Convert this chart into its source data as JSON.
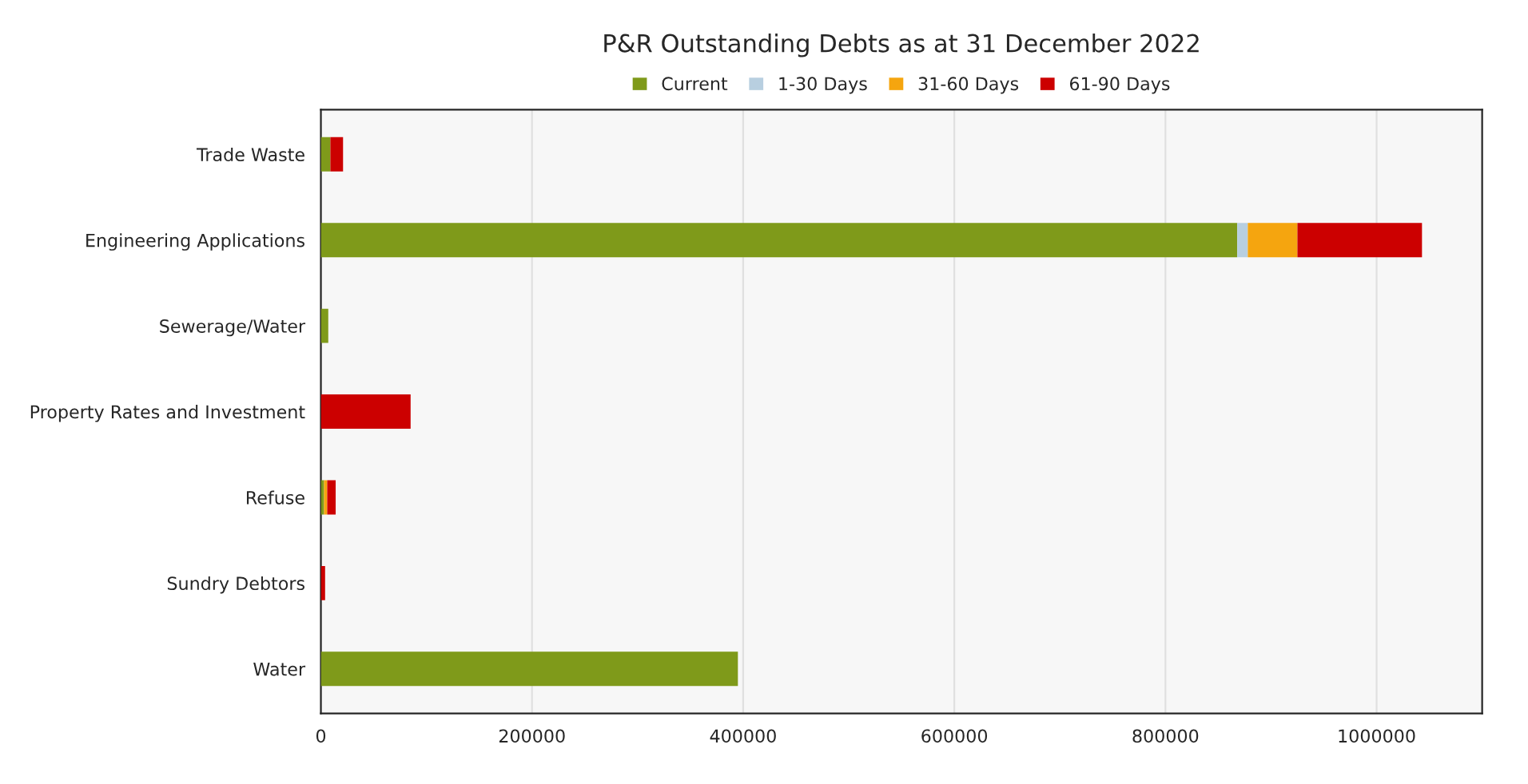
{
  "chart_data": {
    "type": "bar",
    "orientation": "horizontal",
    "stacked": true,
    "title": "P&R Outstanding Debts as at 31 December 2022",
    "categories": [
      "Trade Waste",
      "Engineering Applications",
      "Sewerage/Water",
      "Property Rates and Investment",
      "Refuse",
      "Sundry Debtors",
      "Water"
    ],
    "series": [
      {
        "name": "Current",
        "color": "#7f9a1a",
        "values": [
          9000,
          868000,
          7000,
          null,
          3000,
          null,
          395000
        ]
      },
      {
        "name": "1-30 Days",
        "color": "#b8cfe0",
        "values": [
          null,
          10000,
          null,
          null,
          null,
          null,
          null
        ]
      },
      {
        "name": "31-60 Days",
        "color": "#f5a50f",
        "values": [
          null,
          47000,
          null,
          null,
          3000,
          null,
          null
        ]
      },
      {
        "name": "61-90 Days",
        "color": "#cc0000",
        "values": [
          12000,
          118000,
          null,
          85000,
          8000,
          4000,
          null
        ]
      }
    ],
    "xlim": [
      0,
      1100000
    ],
    "xticks": [
      0,
      200000,
      400000,
      600000,
      800000,
      1000000
    ],
    "grid": "x",
    "legend": "top"
  }
}
